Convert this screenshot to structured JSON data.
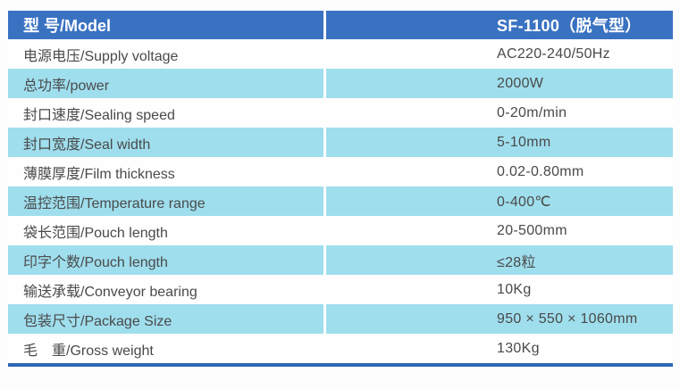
{
  "colors": {
    "header_bg": "#3a72c2",
    "header_text": "#ffffff",
    "row_bg": "#fefefe",
    "row_alt_bg": "#9fdeed",
    "text": "#4a4a4a",
    "bottom_rule": "#2f67b6"
  },
  "table": {
    "header": {
      "label": "型 号/Model",
      "value": "SF-1100（脱气型）"
    },
    "rows": [
      {
        "label": "电源电压/Supply voltage",
        "value": "AC220-240/50Hz"
      },
      {
        "label": "总功率/power",
        "value": "2000W"
      },
      {
        "label": "封口速度/Sealing speed",
        "value": "0-20m/min"
      },
      {
        "label": "封口宽度/Seal width",
        "value": "5-10mm"
      },
      {
        "label": "薄膜厚度/Film thickness",
        "value": "0.02-0.80mm"
      },
      {
        "label": "温控范围/Temperature range",
        "value": "0-400℃"
      },
      {
        "label": "袋长范围/Pouch length",
        "value": "20-500mm"
      },
      {
        "label": "印字个数/Pouch length",
        "value": "≤28粒"
      },
      {
        "label": "输送承载/Conveyor bearing",
        "value": "10Kg"
      },
      {
        "label": "包装尺寸/Package Size",
        "value": "950 × 550 × 1060mm"
      },
      {
        "label": "毛　重/Gross weight",
        "value": "130Kg"
      }
    ]
  }
}
